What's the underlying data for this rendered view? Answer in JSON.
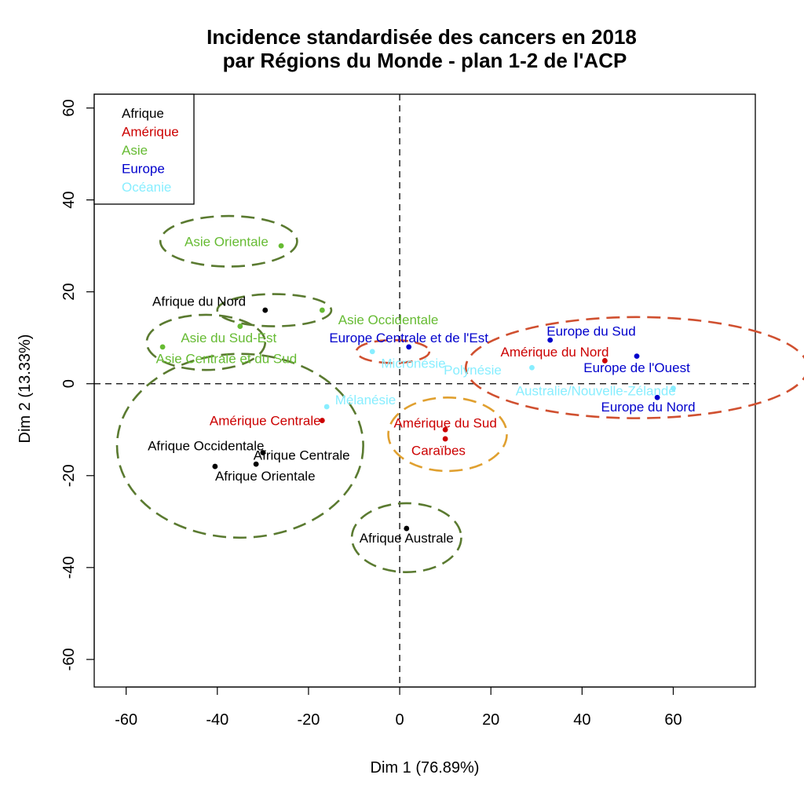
{
  "chart_data": {
    "type": "scatter",
    "title_line1": "Incidence standardisée des cancers en 2018",
    "title_line2": "par Régions du Monde - plan 1-2 de l'ACP",
    "xlabel": "Dim 1 (76.89%)",
    "ylabel": "Dim 2 (13.33%)",
    "xlim": [
      -67,
      78
    ],
    "ylim": [
      -66,
      63
    ],
    "x_ticks": [
      "-60",
      "-40",
      "-20",
      "0",
      "20",
      "40",
      "60"
    ],
    "y_ticks": [
      "-60",
      "-40",
      "-20",
      "0",
      "20",
      "40",
      "60"
    ],
    "grid": false,
    "reference_lines": {
      "x": 0,
      "y": 0,
      "style": "dashed"
    },
    "legend": {
      "position": "top-left",
      "entries": [
        {
          "name": "Afrique",
          "color": "#000000"
        },
        {
          "name": "Amérique",
          "color": "#CC0000"
        },
        {
          "name": "Asie",
          "color": "#66BB33"
        },
        {
          "name": "Europe",
          "color": "#0000CC"
        },
        {
          "name": "Océanie",
          "color": "#88EEFF"
        }
      ]
    },
    "colors": {
      "Afrique": "#000000",
      "Amérique": "#CC0000",
      "Asie": "#66BB33",
      "Europe": "#0000CC",
      "Océanie": "#88EEFF"
    },
    "points": [
      {
        "label": "Asie Orientale",
        "group": "Asie",
        "x": -26,
        "y": 30,
        "lx": -38,
        "ly": 31
      },
      {
        "label": "Afrique du Nord",
        "group": "Afrique",
        "x": -29.5,
        "y": 16,
        "lx": -44,
        "ly": 18
      },
      {
        "label": "Asie Occidentale",
        "group": "Asie",
        "x": -17,
        "y": 16,
        "lx": -2.5,
        "ly": 14
      },
      {
        "label": "Asie du Sud-Est",
        "group": "Asie",
        "x": -35,
        "y": 12.5,
        "lx": -37.5,
        "ly": 10
      },
      {
        "label": "Asie Centrale et du Sud",
        "group": "Asie",
        "x": -52,
        "y": 8,
        "lx": -38,
        "ly": 5.5
      },
      {
        "label": "Europe Centrale et de l'Est",
        "group": "Europe",
        "x": 2,
        "y": 8,
        "lx": 2,
        "ly": 10
      },
      {
        "label": "Micronésie",
        "group": "Océanie",
        "x": -6,
        "y": 7,
        "lx": 3,
        "ly": 4.5
      },
      {
        "label": "Europe du Sud",
        "group": "Europe",
        "x": 33,
        "y": 9.5,
        "lx": 42,
        "ly": 11.5
      },
      {
        "label": "Amérique du Nord",
        "group": "Amérique",
        "x": 45,
        "y": 5,
        "lx": 34,
        "ly": 7
      },
      {
        "label": "Europe de l'Ouest",
        "group": "Europe",
        "x": 52,
        "y": 6,
        "lx": 52,
        "ly": 3.5
      },
      {
        "label": "Polynésie",
        "group": "Océanie",
        "x": 29,
        "y": 3.5,
        "lx": 16,
        "ly": 3
      },
      {
        "label": "Australie/Nouvelle-Zélande",
        "group": "Océanie",
        "x": 60,
        "y": -1,
        "lx": 43,
        "ly": -1.5
      },
      {
        "label": "Europe du Nord",
        "group": "Europe",
        "x": 56.5,
        "y": -3,
        "lx": 54.5,
        "ly": -5
      },
      {
        "label": "Mélanésie",
        "group": "Océanie",
        "x": -16,
        "y": -5,
        "lx": -7.5,
        "ly": -3.5
      },
      {
        "label": "Amérique Centrale",
        "group": "Amérique",
        "x": -17,
        "y": -8,
        "lx": -29.5,
        "ly": -8
      },
      {
        "label": "Amérique du Sud",
        "group": "Amérique",
        "x": 10,
        "y": -10,
        "lx": 10,
        "ly": -8.5
      },
      {
        "label": "Caraïbes",
        "group": "Amérique",
        "x": 10,
        "y": -12,
        "lx": 8.5,
        "ly": -14.5
      },
      {
        "label": "Afrique Occidentale",
        "group": "Afrique",
        "x": -40.5,
        "y": -18,
        "lx": -42.5,
        "ly": -13.5
      },
      {
        "label": "Afrique Centrale",
        "group": "Afrique",
        "x": -30,
        "y": -15,
        "lx": -21.5,
        "ly": -15.5
      },
      {
        "label": "Afrique Orientale",
        "group": "Afrique",
        "x": -31.5,
        "y": -17.5,
        "lx": -29.5,
        "ly": -20
      },
      {
        "label": "Afrique Australe",
        "group": "Afrique",
        "x": 1.5,
        "y": -31.5,
        "lx": 1.5,
        "ly": -33.5
      }
    ],
    "ellipses": [
      {
        "cx": -37.5,
        "cy": 31,
        "rx": 15,
        "ry": 5.5,
        "color": "#5A7A30"
      },
      {
        "cx": -27.5,
        "cy": 16,
        "rx": 12.5,
        "ry": 3.5,
        "color": "#5A7A30"
      },
      {
        "cx": -42.5,
        "cy": 9,
        "rx": 13,
        "ry": 6,
        "color": "#5A7A30"
      },
      {
        "cx": -1.5,
        "cy": 7,
        "rx": 8,
        "ry": 2.5,
        "color": "#D05030"
      },
      {
        "cx": 52,
        "cy": 3.5,
        "rx": 37.5,
        "ry": 11,
        "color": "#D05030"
      },
      {
        "cx": -35,
        "cy": -13.5,
        "rx": 27,
        "ry": 20,
        "color": "#5A7A30"
      },
      {
        "cx": 10.5,
        "cy": -11,
        "rx": 13,
        "ry": 8,
        "color": "#E0A030"
      },
      {
        "cx": 1.5,
        "cy": -33.5,
        "rx": 12,
        "ry": 7.5,
        "color": "#5A7A30"
      }
    ]
  }
}
